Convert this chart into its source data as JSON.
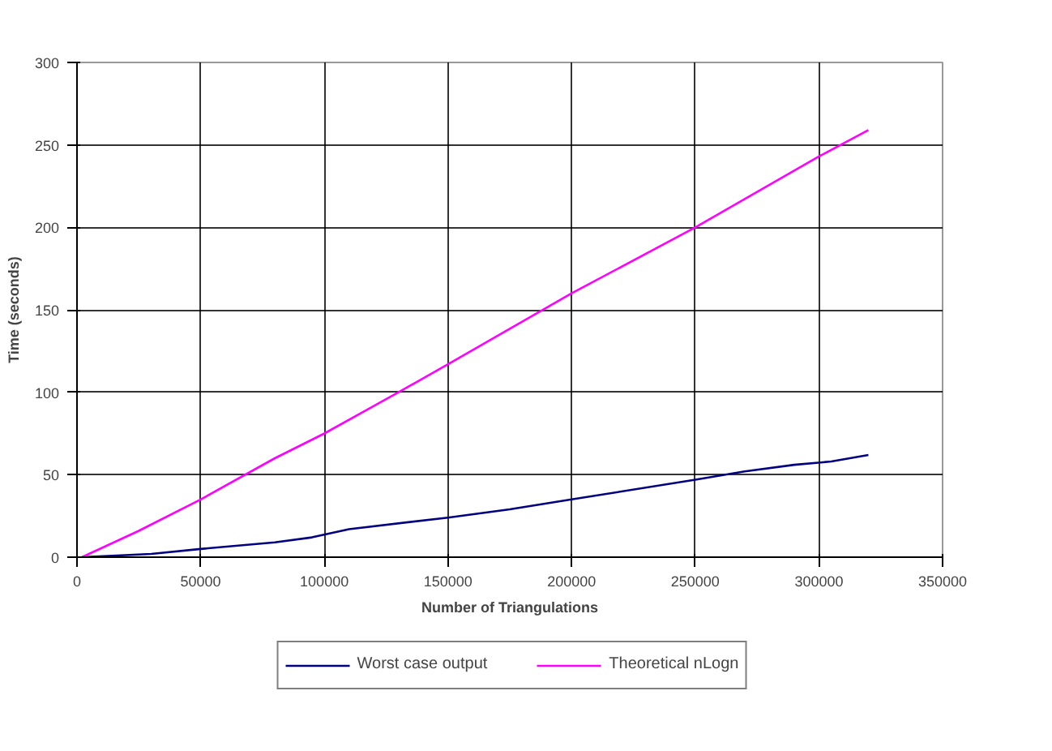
{
  "chart_data": {
    "type": "line",
    "xlabel": "Number of Triangulations",
    "ylabel": "Time (seconds)",
    "xlim": [
      0,
      350000
    ],
    "xticks": [
      0,
      50000,
      100000,
      150000,
      200000,
      250000,
      300000,
      350000
    ],
    "ylim": [
      0,
      300
    ],
    "yticks": [
      0,
      50,
      100,
      150,
      200,
      250,
      300
    ],
    "grid": true,
    "legend": "bottom",
    "marker": "none",
    "line_style": "solid",
    "series": [
      {
        "name": "Worst case output",
        "color": "#000080",
        "x": [
          2000,
          30000,
          50000,
          80000,
          95000,
          110000,
          150000,
          175000,
          200000,
          250000,
          270000,
          290000,
          305000,
          320000
        ],
        "values": [
          0,
          2,
          5,
          9,
          12,
          17,
          24,
          29,
          35,
          47,
          52,
          56,
          58,
          62
        ]
      },
      {
        "name": "Theoretical nLogn",
        "color": "#ff00ff",
        "x": [
          2000,
          25000,
          50000,
          80000,
          100000,
          130000,
          150000,
          200000,
          250000,
          300000,
          320000
        ],
        "values": [
          0,
          16,
          35,
          60,
          75,
          100,
          117,
          160,
          200,
          243,
          259
        ]
      }
    ]
  }
}
